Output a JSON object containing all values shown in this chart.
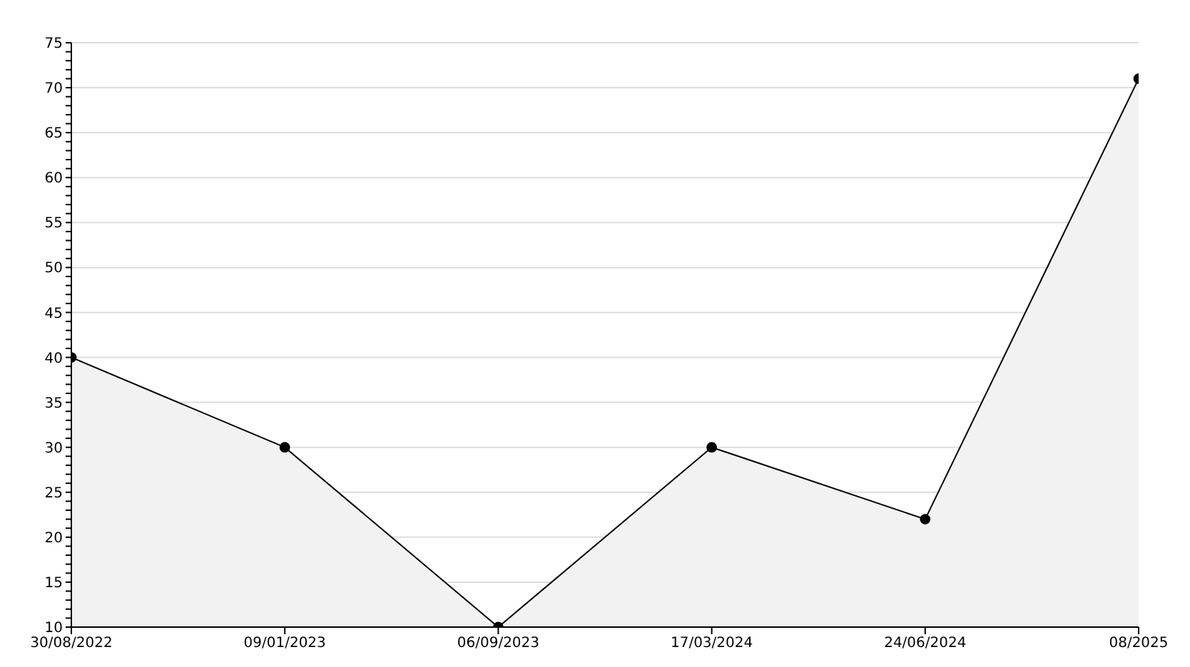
{
  "chart_data": {
    "type": "area",
    "categories": [
      "30/08/2022",
      "09/01/2023",
      "06/09/2023",
      "17/03/2024",
      "24/06/2024",
      "08/2025"
    ],
    "series": [
      {
        "color": "#000000",
        "values": [
          40,
          30,
          10,
          30,
          22,
          71
        ]
      }
    ],
    "ylim": [
      10,
      75
    ],
    "yticks": [
      10,
      {
        "value": 11,
        "label": null
      },
      {
        "value": 12,
        "label": null
      },
      {
        "value": 13,
        "label": null
      },
      {
        "value": 14,
        "label": null
      },
      15,
      {
        "value": 16,
        "label": null
      },
      {
        "value": 17,
        "label": null
      },
      {
        "value": 18,
        "label": null
      },
      {
        "value": 19,
        "label": null
      },
      20,
      {
        "value": 21,
        "label": null
      },
      {
        "value": 22,
        "label": null
      },
      {
        "value": 23,
        "label": null
      },
      {
        "value": 24,
        "label": null
      },
      25,
      {
        "value": 26,
        "label": null
      },
      {
        "value": 27,
        "label": null
      },
      {
        "value": 28,
        "label": null
      },
      {
        "value": 29,
        "label": null
      },
      30,
      {
        "value": 31,
        "label": null
      },
      {
        "value": 32,
        "label": null
      },
      {
        "value": 33,
        "label": null
      },
      {
        "value": 34,
        "label": null
      },
      35,
      {
        "value": 36,
        "label": null
      },
      {
        "value": 37,
        "label": null
      },
      {
        "value": 38,
        "label": null
      },
      {
        "value": 39,
        "label": null
      },
      40,
      {
        "value": 41,
        "label": null
      },
      {
        "value": 42,
        "label": null
      },
      {
        "value": 43,
        "label": null
      },
      {
        "value": 44,
        "label": null
      },
      45,
      {
        "value": 46,
        "label": null
      },
      {
        "value": 47,
        "label": null
      },
      {
        "value": 48,
        "label": null
      },
      {
        "value": 49,
        "label": null
      },
      50,
      {
        "value": 51,
        "label": null
      },
      {
        "value": 52,
        "label": null
      },
      {
        "value": 53,
        "label": null
      },
      {
        "value": 54,
        "label": null
      },
      55,
      {
        "value": 56,
        "label": null
      },
      {
        "value": 57,
        "label": null
      },
      {
        "value": 58,
        "label": null
      },
      {
        "value": 59,
        "label": null
      },
      60,
      {
        "value": 61,
        "label": null
      },
      {
        "value": 62,
        "label": null
      },
      {
        "value": 63,
        "label": null
      },
      {
        "value": 64,
        "label": null
      },
      65,
      {
        "value": 66,
        "label": null
      },
      {
        "value": 67,
        "label": null
      },
      {
        "value": 68,
        "label": null
      },
      {
        "value": 69,
        "label": null
      },
      70,
      {
        "value": 71,
        "label": null
      },
      {
        "value": 72,
        "label": null
      },
      {
        "value": 73,
        "label": null
      },
      {
        "value": 74,
        "label": null
      },
      75
    ],
    "grid": "y",
    "marker": "circle",
    "line_style": "solid",
    "legend": false
  }
}
